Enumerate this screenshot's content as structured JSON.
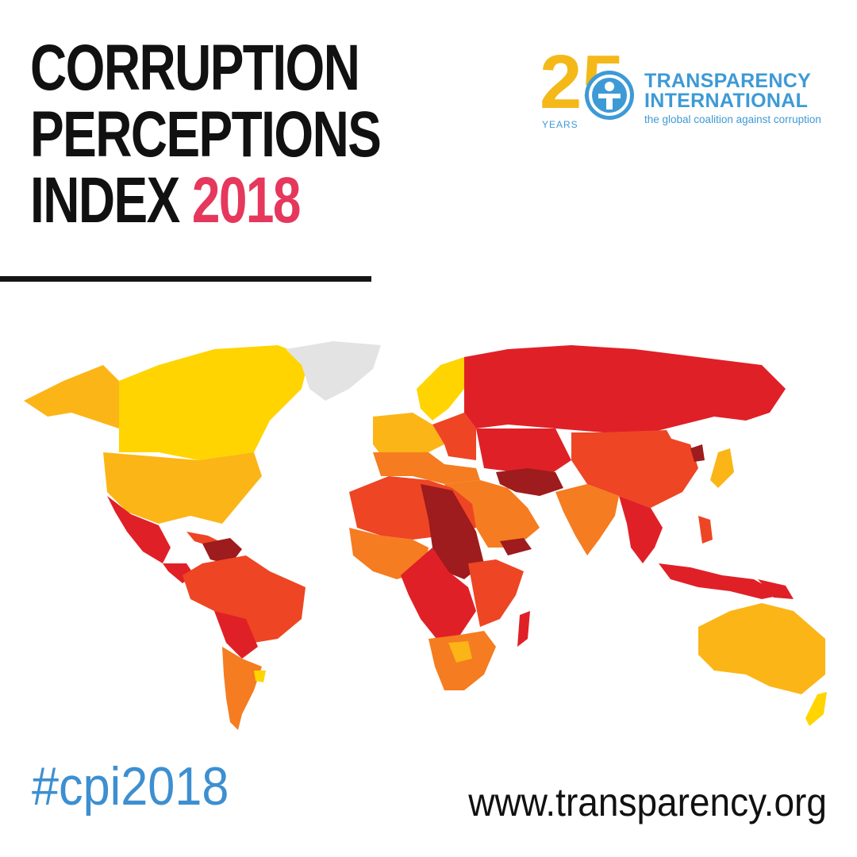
{
  "title": {
    "line1": "CORRUPTION",
    "line2": "PERCEPTIONS",
    "line3_prefix": "INDEX",
    "year": "2018"
  },
  "logo": {
    "anniversary_number": "25",
    "anniversary_label": "YEARS",
    "org_line1": "TRANSPARENCY",
    "org_line2": "INTERNATIONAL",
    "tagline": "the global coalition against corruption",
    "icon": "transparency-international-globe-icon"
  },
  "footer": {
    "hashtag": "#cpi2018",
    "website": "www.transparency.org"
  },
  "colors": {
    "year_accent": "#e5385c",
    "brand_blue": "#3d9ad6",
    "anniversary_gold": "#f4b818",
    "no_data": "#e3e3e3",
    "score_bands": [
      "#9e1b1e",
      "#e02027",
      "#ee4524",
      "#f57c20",
      "#fbb516",
      "#ffd400"
    ]
  }
}
